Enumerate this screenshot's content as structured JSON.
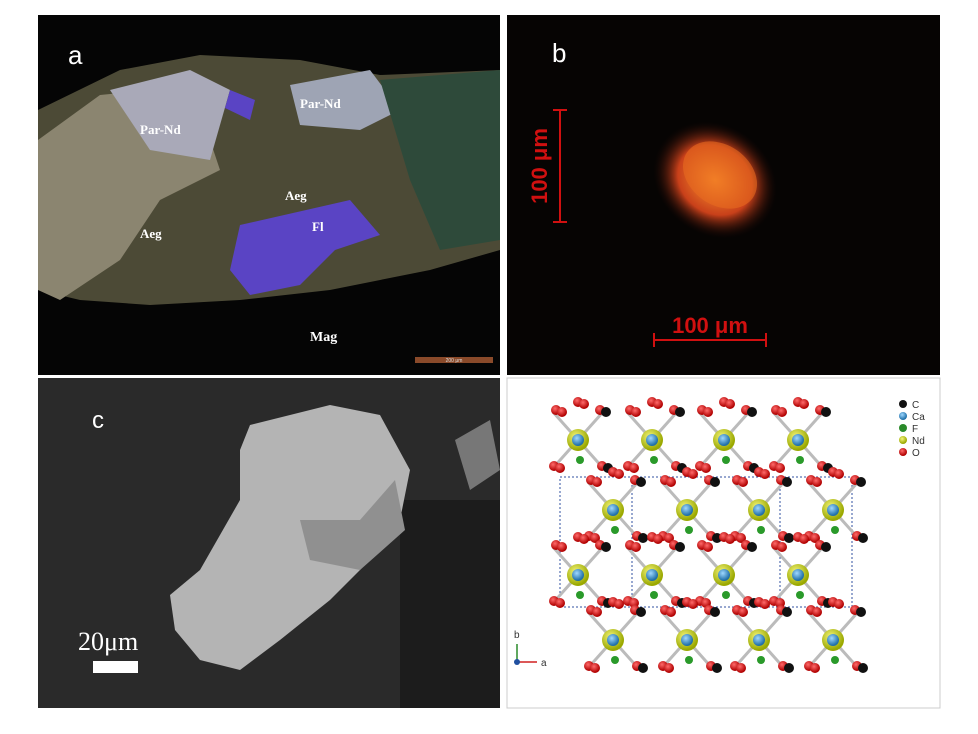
{
  "panels": [
    {
      "label": "a",
      "annotations": [
        "Par-Nd",
        "Par-Nd",
        "Aeg",
        "Aeg",
        "Fl",
        "Mag"
      ],
      "scale_bar": "200 μm"
    },
    {
      "label": "b",
      "scale_bars": [
        "100 μm",
        "100 μm"
      ]
    },
    {
      "label": "c",
      "scale_bar": "20μm"
    },
    {
      "legend": [
        "C",
        "Ca",
        "F",
        "Nd",
        "O"
      ],
      "axes": [
        "b",
        "a"
      ]
    }
  ]
}
